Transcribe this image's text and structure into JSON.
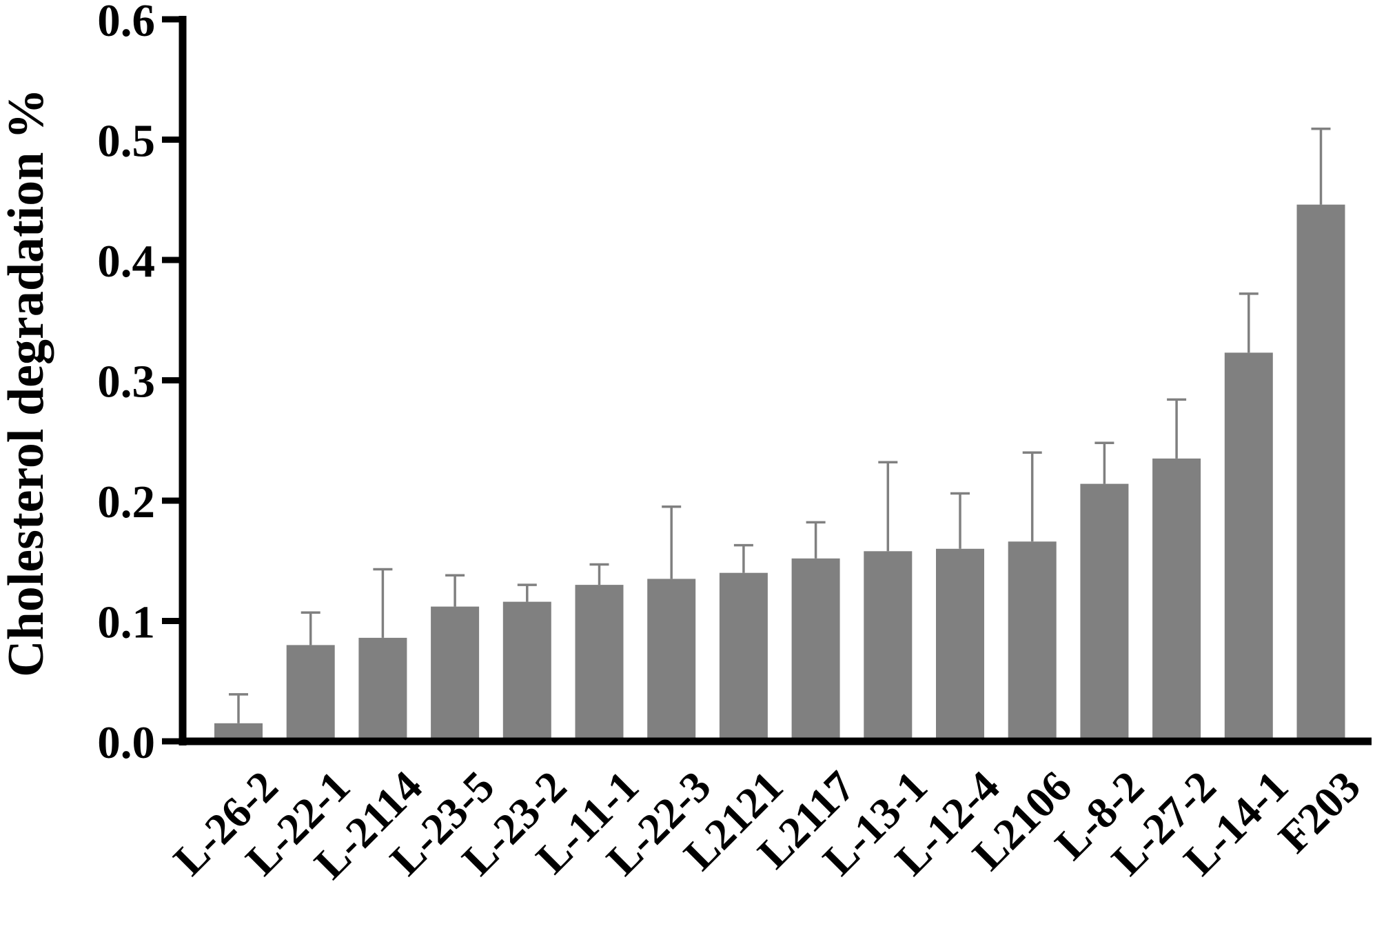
{
  "chart_data": {
    "type": "bar",
    "ylabel": "Cholesterol degradation %",
    "xlabel": "",
    "ylim": [
      0,
      0.6
    ],
    "yticks": [
      "0.0",
      "0.1",
      "0.2",
      "0.3",
      "0.4",
      "0.5",
      "0.6"
    ],
    "grid": false,
    "categories": [
      "L-26-2",
      "L-22-1",
      "L-2114",
      "L-23-5",
      "L-23-2",
      "L-11-1",
      "L-22-3",
      "L2121",
      "L2117",
      "L-13-1",
      "L-12-4",
      "L2106",
      "L-8-2",
      "L-27-2",
      "L-14-1",
      "F203"
    ],
    "values": [
      0.015,
      0.08,
      0.086,
      0.112,
      0.116,
      0.13,
      0.135,
      0.14,
      0.152,
      0.158,
      0.16,
      0.166,
      0.214,
      0.235,
      0.323,
      0.446
    ],
    "error_upper": [
      0.039,
      0.107,
      0.143,
      0.138,
      0.13,
      0.147,
      0.195,
      0.163,
      0.182,
      0.232,
      0.206,
      0.24,
      0.248,
      0.284,
      0.372,
      0.509
    ],
    "colors": {
      "bar": "#808080",
      "axis": "#000000"
    }
  }
}
